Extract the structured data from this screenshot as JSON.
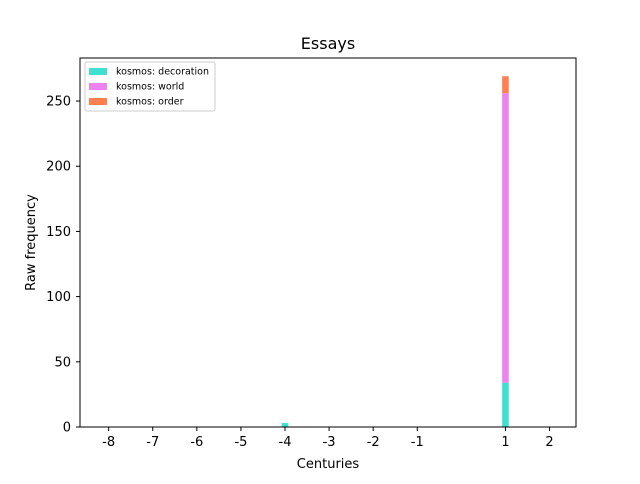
{
  "chart_data": {
    "type": "bar",
    "stacked": true,
    "title": "Essays",
    "xlabel": "Centuries",
    "ylabel": "Raw frequency",
    "xlim": [
      -8.65,
      2.6
    ],
    "ylim": [
      0,
      283
    ],
    "xticks": [
      -8,
      -7,
      -6,
      -5,
      -4,
      -3,
      -2,
      -1,
      1,
      2
    ],
    "xtick_labels": [
      "-8",
      "-7",
      "-6",
      "-5",
      "-4",
      "-3",
      "-2",
      "-1",
      "1",
      "2"
    ],
    "yticks": [
      0,
      50,
      100,
      150,
      200,
      250
    ],
    "ytick_labels": [
      "0",
      "50",
      "100",
      "150",
      "200",
      "250"
    ],
    "bar_width": 0.15,
    "legend_position": "upper-left",
    "grid": false,
    "x": [
      -4,
      1
    ],
    "series": [
      {
        "name": "kosmos: decoration",
        "color": "#40e0d0",
        "values": [
          3,
          34
        ]
      },
      {
        "name": "kosmos: world",
        "color": "#ee82ee",
        "values": [
          0,
          222
        ]
      },
      {
        "name": "kosmos: order",
        "color": "#ff7f50",
        "values": [
          0,
          13
        ]
      }
    ]
  }
}
